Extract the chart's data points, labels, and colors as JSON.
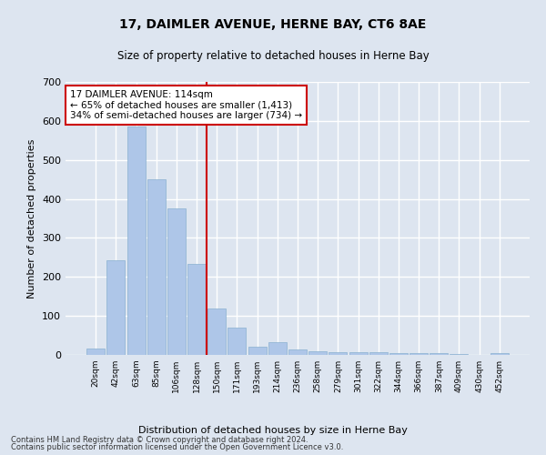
{
  "title": "17, DAIMLER AVENUE, HERNE BAY, CT6 8AE",
  "subtitle": "Size of property relative to detached houses in Herne Bay",
  "xlabel": "Distribution of detached houses by size in Herne Bay",
  "ylabel": "Number of detached properties",
  "categories": [
    "20sqm",
    "42sqm",
    "63sqm",
    "85sqm",
    "106sqm",
    "128sqm",
    "150sqm",
    "171sqm",
    "193sqm",
    "214sqm",
    "236sqm",
    "258sqm",
    "279sqm",
    "301sqm",
    "322sqm",
    "344sqm",
    "366sqm",
    "387sqm",
    "409sqm",
    "430sqm",
    "452sqm"
  ],
  "values": [
    17,
    243,
    585,
    450,
    375,
    233,
    120,
    70,
    22,
    32,
    14,
    10,
    8,
    8,
    7,
    5,
    4,
    4,
    2,
    0,
    5
  ],
  "bar_color": "#aec6e8",
  "bar_edge_color": "#8ab0d0",
  "vline_x": 5.5,
  "vline_color": "#cc0000",
  "annotation_text": "17 DAIMLER AVENUE: 114sqm\n← 65% of detached houses are smaller (1,413)\n34% of semi-detached houses are larger (734) →",
  "annotation_box_color": "#cc0000",
  "ylim": [
    0,
    700
  ],
  "yticks": [
    0,
    100,
    200,
    300,
    400,
    500,
    600,
    700
  ],
  "footer1": "Contains HM Land Registry data © Crown copyright and database right 2024.",
  "footer2": "Contains public sector information licensed under the Open Government Licence v3.0.",
  "bg_color": "#dde5f0",
  "plot_bg_color": "#dde5f0",
  "grid_color": "#ffffff"
}
